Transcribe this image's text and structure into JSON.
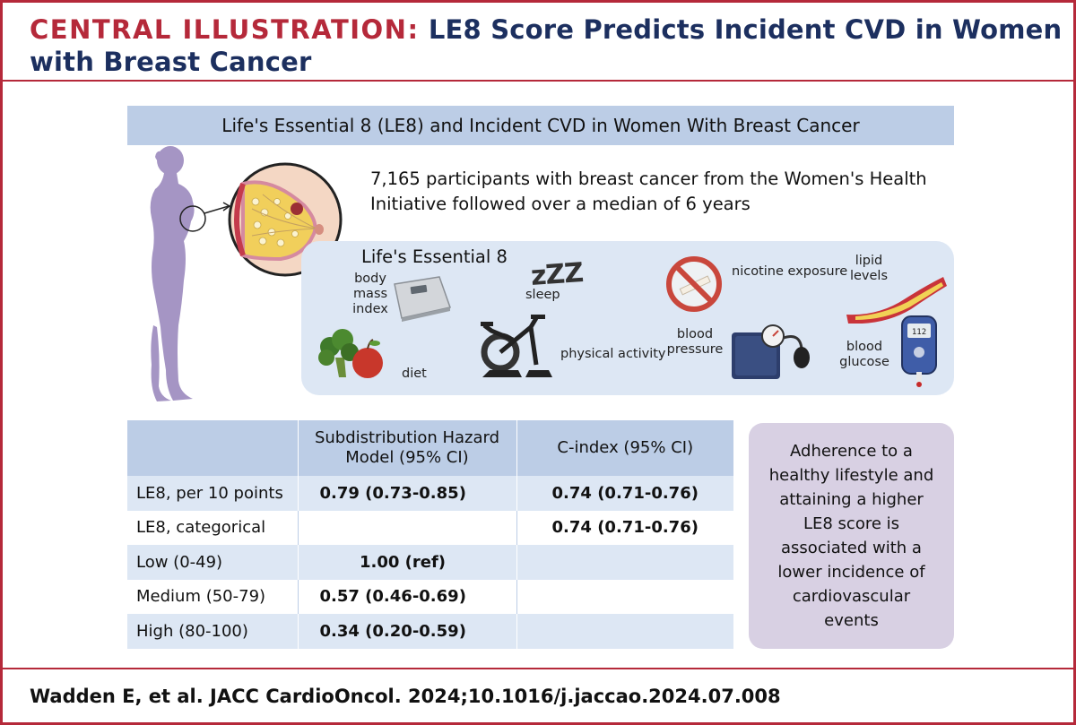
{
  "header": {
    "prefix": "CENTRAL ILLUSTRATION:",
    "title": "LE8 Score Predicts Incident CVD in Women with Breast Cancer"
  },
  "banner": "Life's Essential 8 (LE8) and Incident CVD in Women With Breast Cancer",
  "intro": "7,165 participants with breast cancer from the Women's Health Initiative followed over a median of 6 years",
  "le8": {
    "title": "Life's Essential 8",
    "labels": {
      "bmi": "body mass index",
      "diet": "diet",
      "sleep": "sleep",
      "activity": "physical activity",
      "nicotine": "nicotine exposure",
      "pressure": "blood pressure",
      "lipid": "lipid levels",
      "glucose": "blood glucose"
    },
    "sleep_glyph": "zZZ",
    "glucose_reading": "112"
  },
  "table": {
    "headers": [
      "",
      "Subdistribution Hazard Model (95% CI)",
      "C-index (95% CI)"
    ],
    "rows": [
      [
        "LE8, per 10 points",
        "0.79 (0.73-0.85)",
        "0.74 (0.71-0.76)"
      ],
      [
        "LE8, categorical",
        "",
        "0.74 (0.71-0.76)"
      ],
      [
        "Low (0-49)",
        "1.00 (ref)",
        ""
      ],
      [
        "Medium (50-79)",
        "0.57 (0.46-0.69)",
        ""
      ],
      [
        "High (80-100)",
        "0.34 (0.20-0.59)",
        ""
      ]
    ]
  },
  "conclusion": "Adherence to a healthy lifestyle and attaining a higher LE8 score is associated with a lower incidence of cardiovascular events",
  "footer": "Wadden E, et al. JACC CardioOncol. 2024;10.1016/j.jaccao.2024.07.008",
  "colors": {
    "accent_red": "#b5293a",
    "navy": "#1c2f5f",
    "banner_blue": "#bccde6",
    "light_blue": "#dde7f4",
    "lavender": "#d8d0e3",
    "silhouette": "#a595c4"
  }
}
